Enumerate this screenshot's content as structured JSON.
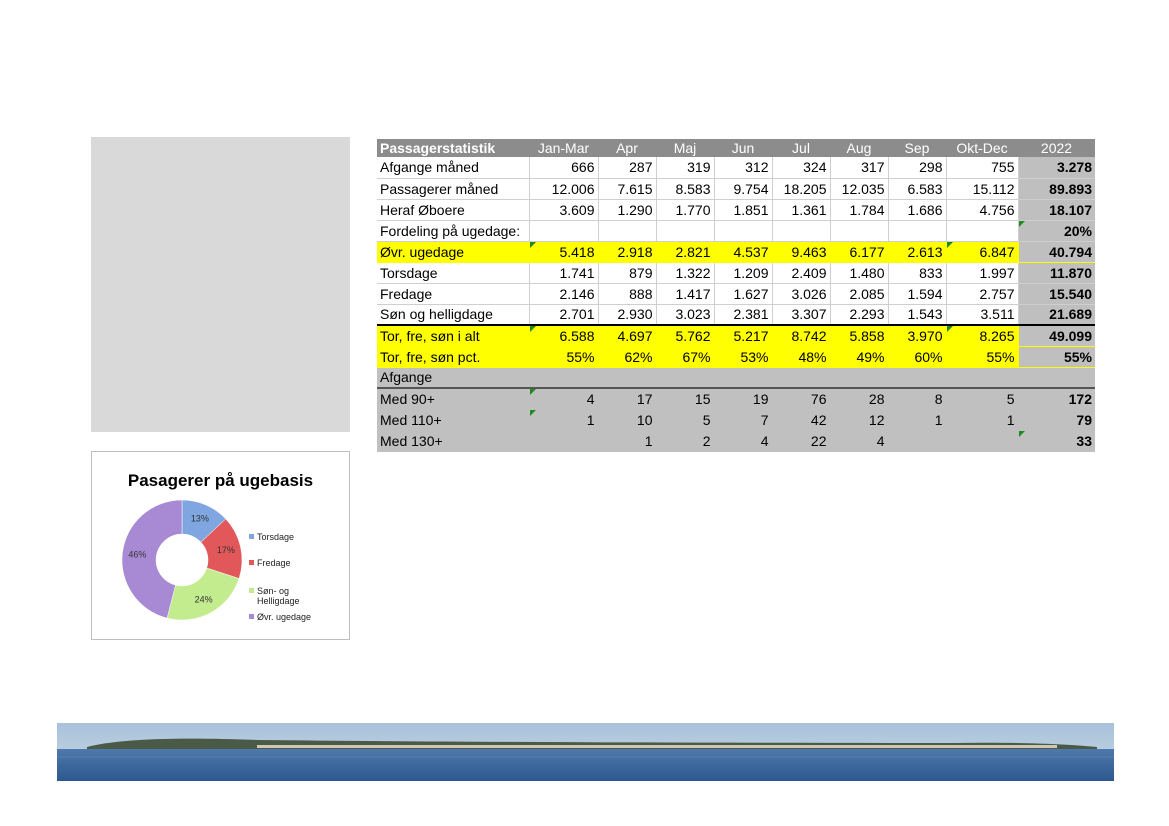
{
  "table": {
    "header": [
      "Passagerstatistik",
      "Jan-Mar",
      "Apr",
      "Maj",
      "Jun",
      "Jul",
      "Aug",
      "Sep",
      "Okt-Dec",
      "2022"
    ],
    "rows": [
      {
        "label": "Afgange måned",
        "values": [
          "666",
          "287",
          "319",
          "312",
          "324",
          "317",
          "298",
          "755"
        ],
        "total": "3.278"
      },
      {
        "label": "Passagerer måned",
        "values": [
          "12.006",
          "7.615",
          "8.583",
          "9.754",
          "18.205",
          "12.035",
          "6.583",
          "15.112"
        ],
        "total": "89.893"
      },
      {
        "label": "Heraf Øboere",
        "values": [
          "3.609",
          "1.290",
          "1.770",
          "1.851",
          "1.361",
          "1.784",
          "1.686",
          "4.756"
        ],
        "total": "18.107"
      },
      {
        "label": "Fordeling på ugedage:",
        "values": [
          "",
          "",
          "",
          "",
          "",
          "",
          "",
          ""
        ],
        "total": "20%"
      },
      {
        "label": "Øvr. ugedage",
        "values": [
          "5.418",
          "2.918",
          "2.821",
          "4.537",
          "9.463",
          "6.177",
          "2.613",
          "6.847"
        ],
        "total": "40.794"
      },
      {
        "label": "Torsdage",
        "values": [
          "1.741",
          "879",
          "1.322",
          "1.209",
          "2.409",
          "1.480",
          "833",
          "1.997"
        ],
        "total": "11.870"
      },
      {
        "label": "Fredage",
        "values": [
          "2.146",
          "888",
          "1.417",
          "1.627",
          "3.026",
          "2.085",
          "1.594",
          "2.757"
        ],
        "total": "15.540"
      },
      {
        "label": "Søn og helligdage",
        "values": [
          "2.701",
          "2.930",
          "3.023",
          "2.381",
          "3.307",
          "2.293",
          "1.543",
          "3.511"
        ],
        "total": "21.689"
      },
      {
        "label": "Tor, fre, søn i alt",
        "values": [
          "6.588",
          "4.697",
          "5.762",
          "5.217",
          "8.742",
          "5.858",
          "3.970",
          "8.265"
        ],
        "total": "49.099"
      },
      {
        "label": "Tor, fre, søn pct.",
        "values": [
          "55%",
          "62%",
          "67%",
          "53%",
          "48%",
          "49%",
          "60%",
          "55%"
        ],
        "total": "55%"
      },
      {
        "label": "Afgange",
        "values": [
          "",
          "",
          "",
          "",
          "",
          "",
          "",
          ""
        ],
        "total": ""
      },
      {
        "label": "Med 90+",
        "values": [
          "4",
          "17",
          "15",
          "19",
          "76",
          "28",
          "8",
          "5"
        ],
        "total": "172"
      },
      {
        "label": "Med 110+",
        "values": [
          "1",
          "10",
          "5",
          "7",
          "42",
          "12",
          "1",
          "1"
        ],
        "total": "79"
      },
      {
        "label": "Med 130+",
        "values": [
          "",
          "1",
          "2",
          "4",
          "22",
          "4",
          "",
          ""
        ],
        "total": "33"
      }
    ]
  },
  "chart_data": {
    "type": "pie",
    "title": "Pasagerer på ugebasis",
    "categories": [
      "Torsdage",
      "Fredage",
      "Søn- og Helligdage",
      "Øvr. ugedage"
    ],
    "values": [
      13,
      17,
      24,
      46
    ],
    "labels": [
      "13%",
      "17%",
      "24%",
      "46%"
    ],
    "legend_labels": [
      [
        "Torsdage"
      ],
      [
        "Fredage"
      ],
      [
        "Søn- og",
        "Helligdage"
      ],
      [
        "Øvr. ugedage"
      ]
    ],
    "colors": [
      "#7fa6e0",
      "#e2585a",
      "#c3ec8f",
      "#a78ad3"
    ],
    "legend_position": "right"
  }
}
